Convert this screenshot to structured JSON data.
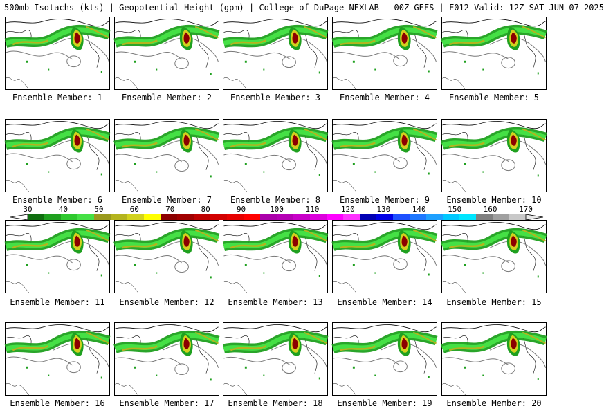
{
  "header": {
    "title": "500mb Isotachs (kts) | Geopotential Height (gpm) | College of DuPage NEXLAB   00Z GEFS | F012 Valid: 12Z SAT JUN 07 2025"
  },
  "panels": [
    {
      "label": "Ensemble Member: 1"
    },
    {
      "label": "Ensemble Member: 2"
    },
    {
      "label": "Ensemble Member: 3"
    },
    {
      "label": "Ensemble Member: 4"
    },
    {
      "label": "Ensemble Member: 5"
    },
    {
      "label": "Ensemble Member: 6"
    },
    {
      "label": "Ensemble Member: 7"
    },
    {
      "label": "Ensemble Member: 8"
    },
    {
      "label": "Ensemble Member: 9"
    },
    {
      "label": "Ensemble Member: 10"
    },
    {
      "label": "Ensemble Member: 11"
    },
    {
      "label": "Ensemble Member: 12"
    },
    {
      "label": "Ensemble Member: 13"
    },
    {
      "label": "Ensemble Member: 14"
    },
    {
      "label": "Ensemble Member: 15"
    },
    {
      "label": "Ensemble Member: 16"
    },
    {
      "label": "Ensemble Member: 17"
    },
    {
      "label": "Ensemble Member: 18"
    },
    {
      "label": "Ensemble Member: 19"
    },
    {
      "label": "Ensemble Member: 20"
    }
  ],
  "colorbar": {
    "ticks": [
      "30",
      "40",
      "50",
      "60",
      "70",
      "80",
      "90",
      "100",
      "110",
      "120",
      "130",
      "140",
      "150",
      "160",
      "170"
    ],
    "colors": [
      "#0f6e0f",
      "#1fa01f",
      "#2ec82e",
      "#45e045",
      "#9a9a1e",
      "#b4b41e",
      "#d2d21e",
      "#ffff00",
      "#8c0000",
      "#a00000",
      "#be0000",
      "#d20000",
      "#e60000",
      "#ff0000",
      "#aa00aa",
      "#b400b4",
      "#c800c8",
      "#dc00dc",
      "#ff00ff",
      "#ff33ff",
      "#0000b4",
      "#0000e6",
      "#1e50ff",
      "#1e78ff",
      "#1ea0ff",
      "#00c8ff",
      "#00e6ff",
      "#808080",
      "#a0a0a0",
      "#c8c8c8"
    ]
  }
}
